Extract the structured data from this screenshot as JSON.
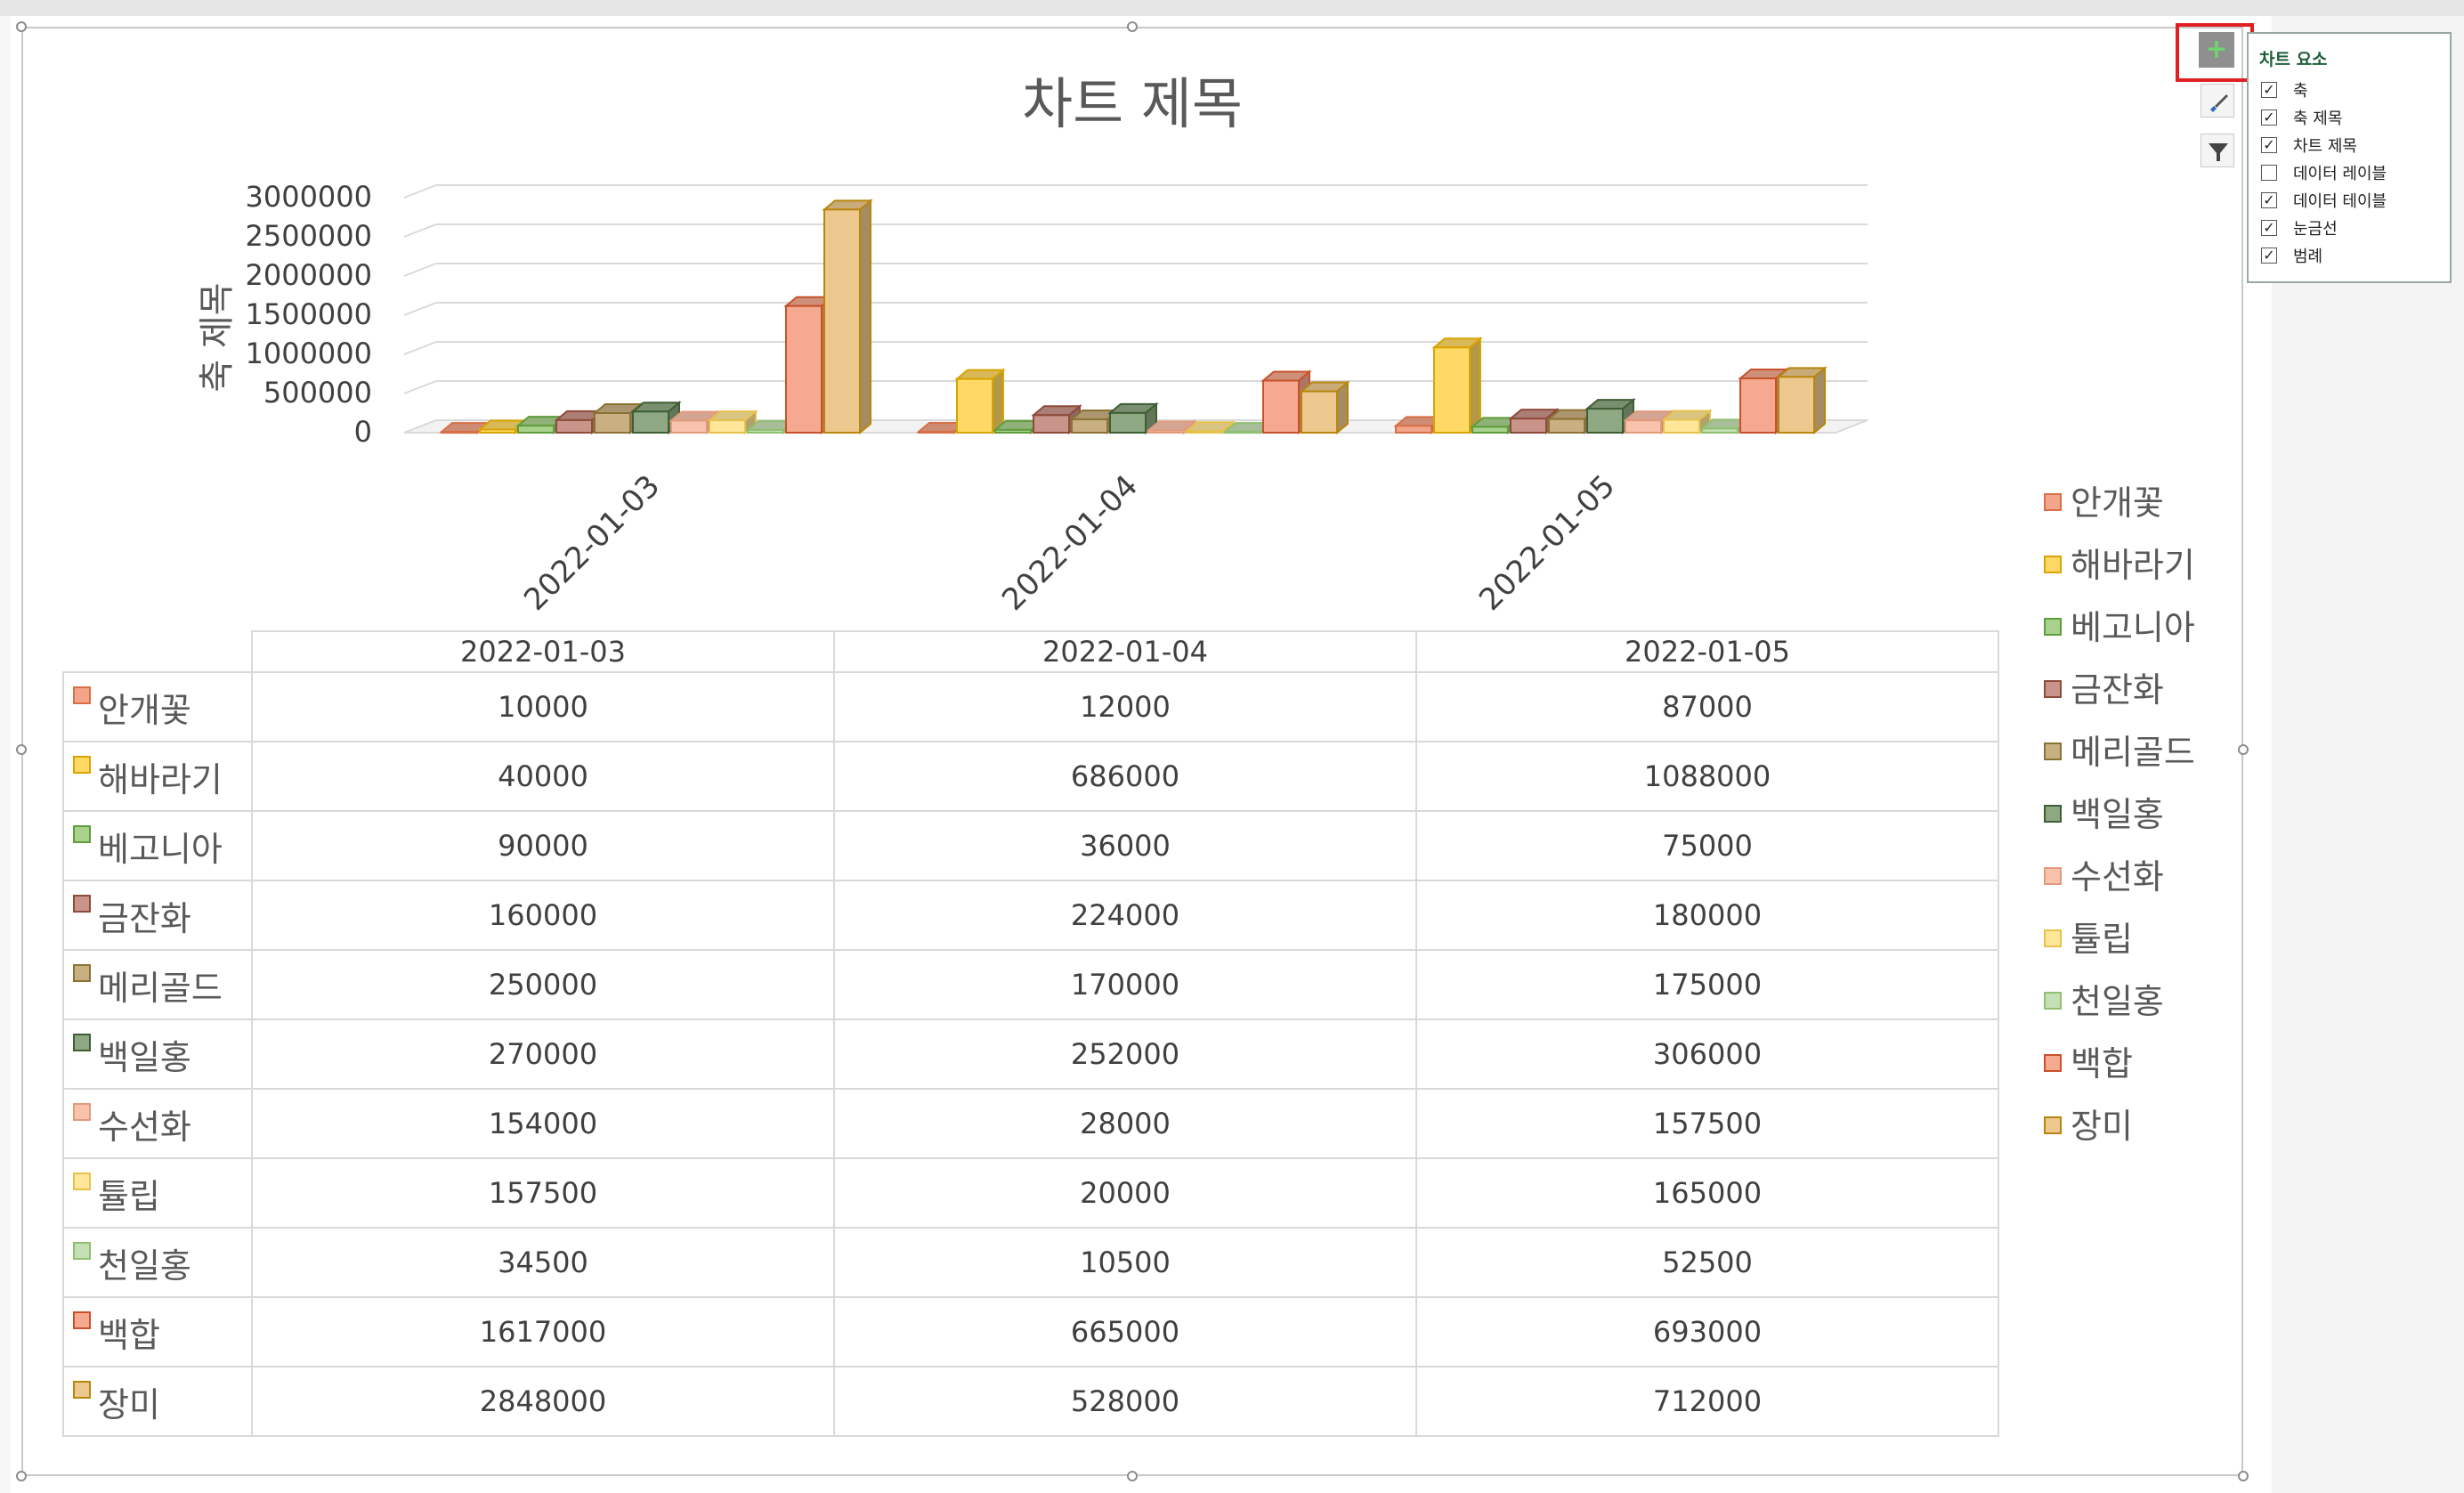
{
  "chart_data": {
    "type": "bar",
    "title": "차트 제목",
    "ylabel": "축 제목",
    "xlabel": "",
    "categories": [
      "2022-01-03",
      "2022-01-04",
      "2022-01-05"
    ],
    "ylim": [
      0,
      3000000
    ],
    "yticks": [
      "3000000",
      "2500000",
      "2000000",
      "1500000",
      "1000000",
      "500000",
      "0"
    ],
    "grid": true,
    "legend_position": "right",
    "data_table": true,
    "series": [
      {
        "name": "안개꽃",
        "values": [
          10000,
          12000,
          87000
        ],
        "fill": "#f2a58a",
        "edge": "#d86f45"
      },
      {
        "name": "해바라기",
        "values": [
          40000,
          686000,
          1088000
        ],
        "fill": "#ffd966",
        "edge": "#d9a400"
      },
      {
        "name": "베고니아",
        "values": [
          90000,
          36000,
          75000
        ],
        "fill": "#a9d18e",
        "edge": "#5f9c3a"
      },
      {
        "name": "금잔화",
        "values": [
          160000,
          224000,
          180000
        ],
        "fill": "#c9958a",
        "edge": "#8f4a3a"
      },
      {
        "name": "메리골드",
        "values": [
          250000,
          170000,
          175000
        ],
        "fill": "#c9b083",
        "edge": "#8c7232"
      },
      {
        "name": "백일홍",
        "values": [
          270000,
          252000,
          306000
        ],
        "fill": "#8ea883",
        "edge": "#3e5e33"
      },
      {
        "name": "수선화",
        "values": [
          154000,
          28000,
          157500
        ],
        "fill": "#f8c2ac",
        "edge": "#e39a7c"
      },
      {
        "name": "튤립",
        "values": [
          157500,
          20000,
          165000
        ],
        "fill": "#ffe699",
        "edge": "#e6c24d"
      },
      {
        "name": "천일홍",
        "values": [
          34500,
          10500,
          52500
        ],
        "fill": "#c5e0b4",
        "edge": "#8fc06f"
      },
      {
        "name": "백합",
        "values": [
          1617000,
          665000,
          693000
        ],
        "fill": "#f4a990",
        "edge": "#c8512a"
      },
      {
        "name": "장미",
        "values": [
          2848000,
          528000,
          712000
        ],
        "fill": "#ecc88e",
        "edge": "#b8860b"
      }
    ]
  },
  "chart_elements_panel": {
    "title": "차트 요소",
    "items": [
      {
        "label": "축",
        "checked": true
      },
      {
        "label": "축 제목",
        "checked": true
      },
      {
        "label": "차트 제목",
        "checked": true
      },
      {
        "label": "데이터 레이블",
        "checked": false
      },
      {
        "label": "데이터 테이블",
        "checked": true
      },
      {
        "label": "눈금선",
        "checked": true
      },
      {
        "label": "범례",
        "checked": true
      }
    ]
  },
  "side_buttons": {
    "plus": "+",
    "icons": [
      "brush-icon",
      "filter-icon"
    ]
  }
}
